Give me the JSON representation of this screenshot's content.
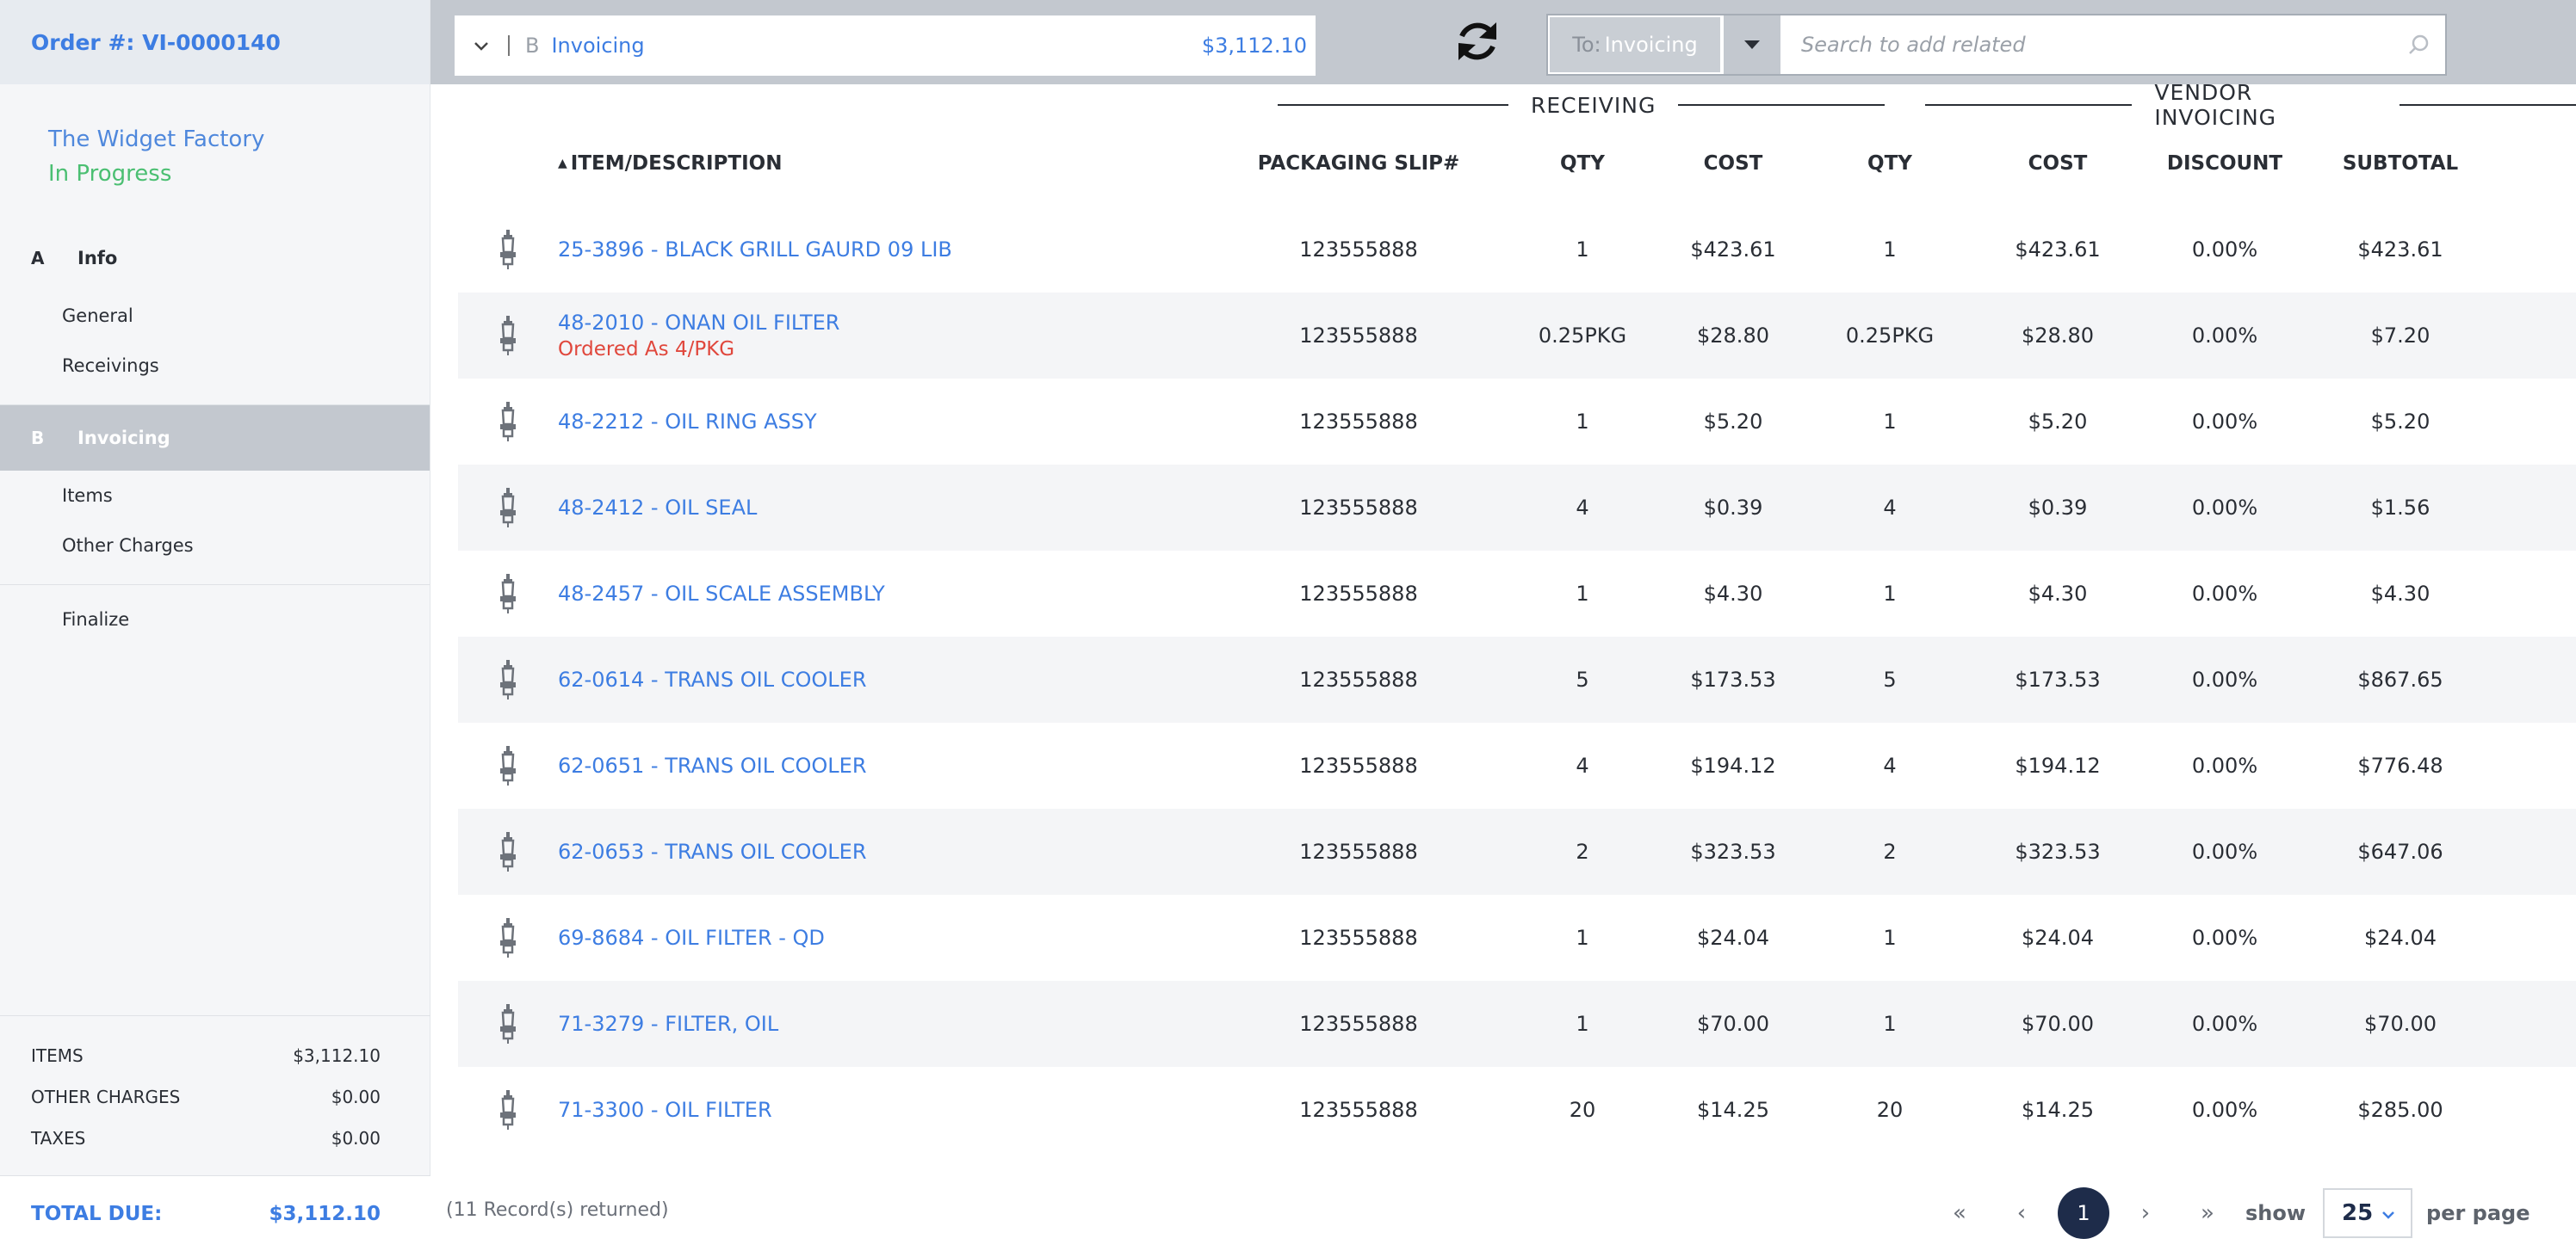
{
  "order": {
    "label": "Order #: VI-0000140"
  },
  "vendor": {
    "name": "The Widget Factory",
    "status": "In Progress"
  },
  "nav": {
    "info": {
      "letter": "A",
      "label": "Info",
      "items": [
        "General",
        "Receivings"
      ]
    },
    "invoicing": {
      "letter": "B",
      "label": "Invoicing",
      "items": [
        "Items",
        "Other Charges"
      ]
    },
    "finalize": {
      "label": "Finalize"
    }
  },
  "totals": {
    "items_label": "ITEMS",
    "items_value": "$3,112.10",
    "other_label": "OTHER CHARGES",
    "other_value": "$0.00",
    "taxes_label": "TAXES",
    "taxes_value": "$0.00",
    "due_label": "TOTAL DUE:",
    "due_value": "$3,112.10"
  },
  "topbar": {
    "section_letter": "B",
    "section_name": "Invoicing",
    "section_amount": "$3,112.10",
    "to_prefix": "To:",
    "to_value": "Invoicing",
    "search_placeholder": "Search to add related"
  },
  "groups": {
    "receiving": "RECEIVING",
    "vendor_invoicing": "VENDOR INVOICING"
  },
  "table": {
    "headers": {
      "desc": "ITEM/DESCRIPTION",
      "slip": "PACKAGING SLIP#",
      "rqty": "QTY",
      "rcost": "COST",
      "vqty": "QTY",
      "vcost": "COST",
      "disc": "DISCOUNT",
      "sub": "SUBTOTAL"
    },
    "rows": [
      {
        "desc": "25-3896 - BLACK GRILL GAURD 09 LIB",
        "note": "",
        "slip": "123555888",
        "rqty": "1",
        "rcost": "$423.61",
        "vqty": "1",
        "vcost": "$423.61",
        "disc": "0.00%",
        "sub": "$423.61"
      },
      {
        "desc": "48-2010 - ONAN OIL FILTER",
        "note": "Ordered As 4/PKG",
        "slip": "123555888",
        "rqty": "0.25PKG",
        "rcost": "$28.80",
        "vqty": "0.25PKG",
        "vcost": "$28.80",
        "disc": "0.00%",
        "sub": "$7.20"
      },
      {
        "desc": "48-2212 - OIL RING ASSY",
        "note": "",
        "slip": "123555888",
        "rqty": "1",
        "rcost": "$5.20",
        "vqty": "1",
        "vcost": "$5.20",
        "disc": "0.00%",
        "sub": "$5.20"
      },
      {
        "desc": "48-2412 - OIL SEAL",
        "note": "",
        "slip": "123555888",
        "rqty": "4",
        "rcost": "$0.39",
        "vqty": "4",
        "vcost": "$0.39",
        "disc": "0.00%",
        "sub": "$1.56"
      },
      {
        "desc": "48-2457 - OIL SCALE ASSEMBLY",
        "note": "",
        "slip": "123555888",
        "rqty": "1",
        "rcost": "$4.30",
        "vqty": "1",
        "vcost": "$4.30",
        "disc": "0.00%",
        "sub": "$4.30"
      },
      {
        "desc": "62-0614 - TRANS OIL COOLER",
        "note": "",
        "slip": "123555888",
        "rqty": "5",
        "rcost": "$173.53",
        "vqty": "5",
        "vcost": "$173.53",
        "disc": "0.00%",
        "sub": "$867.65"
      },
      {
        "desc": "62-0651 - TRANS OIL COOLER",
        "note": "",
        "slip": "123555888",
        "rqty": "4",
        "rcost": "$194.12",
        "vqty": "4",
        "vcost": "$194.12",
        "disc": "0.00%",
        "sub": "$776.48"
      },
      {
        "desc": "62-0653 - TRANS OIL COOLER",
        "note": "",
        "slip": "123555888",
        "rqty": "2",
        "rcost": "$323.53",
        "vqty": "2",
        "vcost": "$323.53",
        "disc": "0.00%",
        "sub": "$647.06"
      },
      {
        "desc": "69-8684 - OIL FILTER - QD",
        "note": "",
        "slip": "123555888",
        "rqty": "1",
        "rcost": "$24.04",
        "vqty": "1",
        "vcost": "$24.04",
        "disc": "0.00%",
        "sub": "$24.04"
      },
      {
        "desc": "71-3279 - FILTER, OIL",
        "note": "",
        "slip": "123555888",
        "rqty": "1",
        "rcost": "$70.00",
        "vqty": "1",
        "vcost": "$70.00",
        "disc": "0.00%",
        "sub": "$70.00"
      },
      {
        "desc": "71-3300 - OIL FILTER",
        "note": "",
        "slip": "123555888",
        "rqty": "20",
        "rcost": "$14.25",
        "vqty": "20",
        "vcost": "$14.25",
        "disc": "0.00%",
        "sub": "$285.00"
      }
    ],
    "row_icon": "spark-plug-icon"
  },
  "footer": {
    "records": "(11 Record(s) returned)",
    "current_page": "1",
    "show_label": "show",
    "per_page_value": "25",
    "per_page_label": "per page"
  },
  "colors": {
    "accent": "#3d7de2",
    "status_green": "#4bbf72",
    "note_red": "#e0473c",
    "sidebar_active": "#c3c8cf",
    "page_dark": "#1e2c4a"
  }
}
